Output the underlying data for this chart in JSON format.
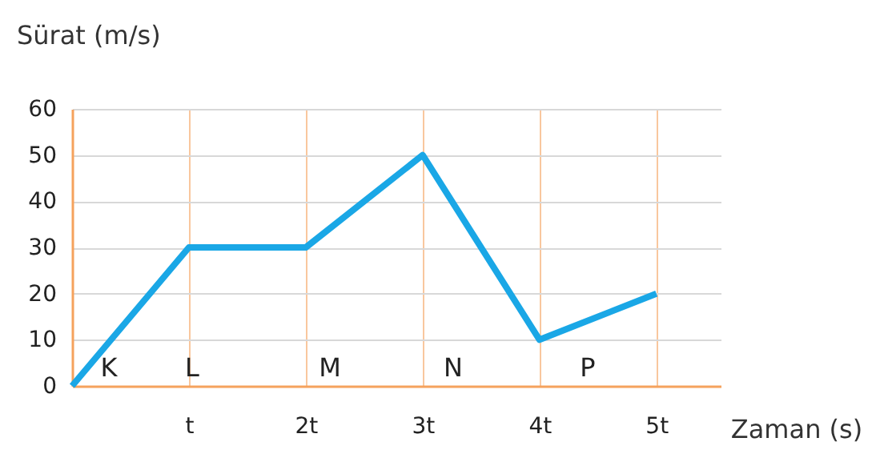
{
  "chart_data": {
    "type": "line",
    "x": [
      0,
      1,
      2,
      3,
      4,
      5
    ],
    "series": [
      {
        "color": "#1aa7e6",
        "values": [
          0,
          30,
          30,
          50,
          10,
          20
        ]
      }
    ],
    "xlim": [
      0,
      5.55
    ],
    "xticks": [
      {
        "value": 1,
        "label": "t"
      },
      {
        "value": 2,
        "label": "2t"
      },
      {
        "value": 3,
        "label": "3t"
      },
      {
        "value": 4,
        "label": "4t"
      },
      {
        "value": 5,
        "label": "5t"
      }
    ],
    "ylim": [
      0,
      60
    ],
    "yticks": [
      0,
      10,
      20,
      30,
      40,
      50,
      60
    ],
    "xlabel": "Zaman (s)",
    "ylabel": "Sürat (m/s)",
    "annotations": [
      "K",
      "L",
      "M",
      "N",
      "P"
    ],
    "grid": true,
    "marker": "none",
    "line_style": "solid"
  }
}
